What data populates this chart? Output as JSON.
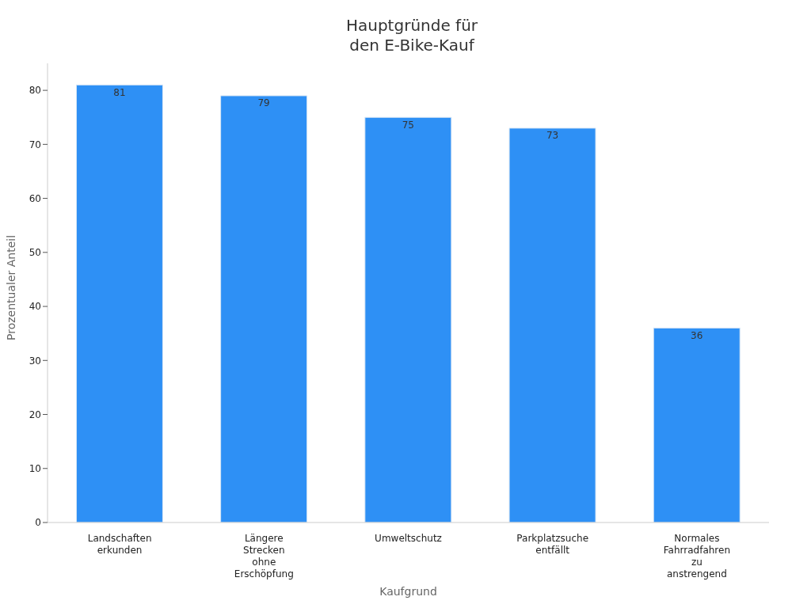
{
  "chart_data": {
    "type": "bar",
    "title": "Hauptgründe für den E-Bike-Kauf",
    "xlabel": "Kaufgrund",
    "ylabel": "Prozentualer Anteil",
    "categories": [
      "Landschaften erkunden",
      "Längere Strecken ohne Erschöpfung",
      "Umweltschutz",
      "Parkplatzsuche entfällt",
      "Normales Fahrradfahren zu anstrengend"
    ],
    "values": [
      81,
      79,
      75,
      73,
      36
    ],
    "color": "#2e90f5",
    "ylim": [
      0,
      85
    ],
    "yticks": [
      0,
      10,
      20,
      30,
      40,
      50,
      60,
      70,
      80
    ],
    "grid": false,
    "data_labels": true,
    "legend": false
  }
}
